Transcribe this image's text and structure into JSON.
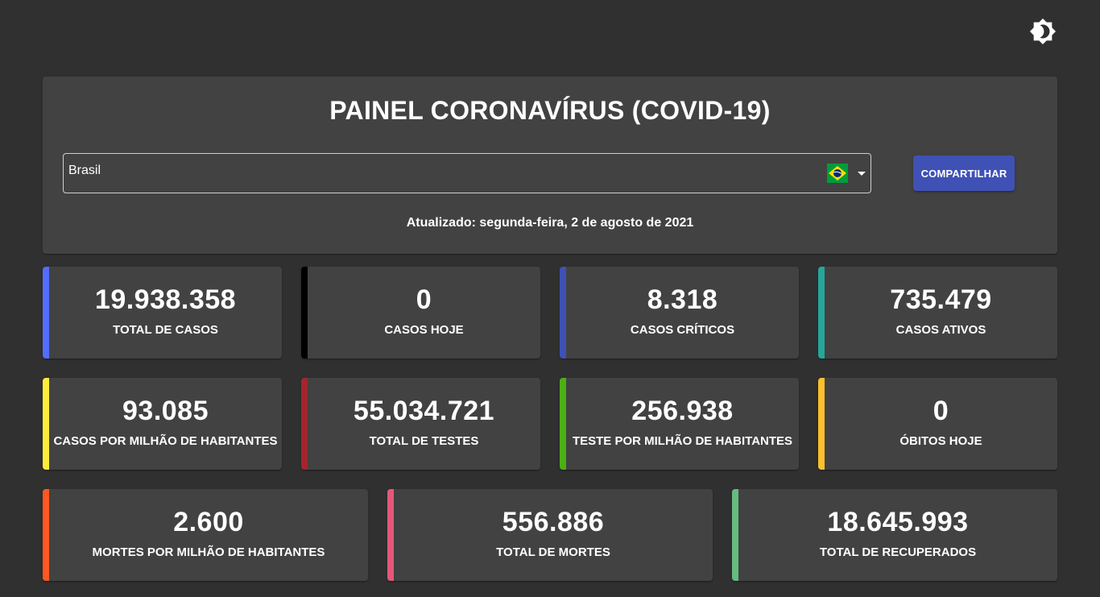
{
  "theme_toggle": {
    "icon": "brightness-icon"
  },
  "header": {
    "title": "PAINEL CORONAVÍRUS (COVID-19)",
    "country": "Brasil",
    "share_label": "COMPARTILHAR",
    "updated": "Atualizado: segunda-feira, 2 de agosto de 2021"
  },
  "stats": [
    {
      "value": "19.938.358",
      "label": "TOTAL DE CASOS",
      "color": "#536dfe"
    },
    {
      "value": "0",
      "label": "CASOS HOJE",
      "color": "#000000"
    },
    {
      "value": "8.318",
      "label": "CASOS CRÍTICOS",
      "color": "#3f51b5"
    },
    {
      "value": "735.479",
      "label": "CASOS ATIVOS",
      "color": "#26a69a"
    },
    {
      "value": "93.085",
      "label": "CASOS POR MILHÃO DE HABITANTES",
      "color": "#ffeb3b"
    },
    {
      "value": "55.034.721",
      "label": "TOTAL DE TESTES",
      "color": "#a4262c"
    },
    {
      "value": "256.938",
      "label": "TESTE POR MILHÃO DE HABITANTES",
      "color": "#4caf13"
    },
    {
      "value": "0",
      "label": "ÓBITOS HOJE",
      "color": "#fbc02d"
    },
    {
      "value": "2.600",
      "label": "MORTES POR MILHÃO DE HABITANTES",
      "color": "#ff5722"
    },
    {
      "value": "556.886",
      "label": "TOTAL DE MORTES",
      "color": "#e5577a"
    },
    {
      "value": "18.645.993",
      "label": "TOTAL DE RECUPERADOS",
      "color": "#66bb80"
    }
  ]
}
